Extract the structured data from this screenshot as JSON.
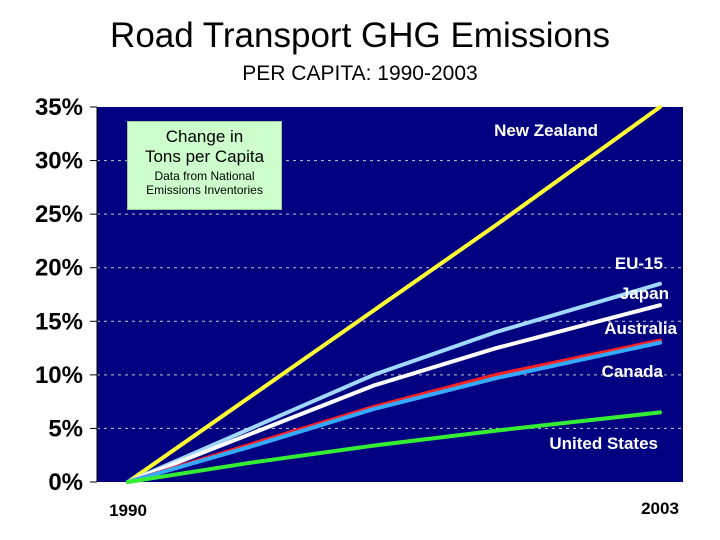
{
  "title": "Road Transport GHG Emissions",
  "subtitle": "PER CAPITA: 1990-2003",
  "note": {
    "line1": "Change in",
    "line2": "Tons per Capita",
    "line3": "Data from National",
    "line4": "Emissions Inventories"
  },
  "colors": {
    "plot_bg": "#000080",
    "grid": "#c8c8c8",
    "new_zealand": "#ffff33",
    "eu15": "#a0d8ff",
    "japan": "#ffffff",
    "australia": "#ff2020",
    "canada": "#33aaff",
    "united_states": "#33ee33"
  },
  "chart_data": {
    "type": "line",
    "title": "Road Transport GHG Emissions",
    "subtitle": "PER CAPITA: 1990-2003",
    "xlabel": "",
    "ylabel": "",
    "x_tick_labels": [
      "1990",
      "2003"
    ],
    "x": [
      1990,
      1993,
      1996,
      1999,
      2003
    ],
    "ylim": [
      0,
      35
    ],
    "y_ticks": [
      0,
      5,
      10,
      15,
      20,
      25,
      30,
      35
    ],
    "y_tick_labels": [
      "0%",
      "5%",
      "10%",
      "15%",
      "20%",
      "25%",
      "30%",
      "35%"
    ],
    "grid": true,
    "series": [
      {
        "name": "New Zealand",
        "key": "new_zealand",
        "values": [
          0,
          8,
          16,
          24,
          35
        ]
      },
      {
        "name": "EU-15",
        "key": "eu15",
        "values": [
          0,
          5,
          10,
          14,
          18.5
        ]
      },
      {
        "name": "Japan",
        "key": "japan",
        "values": [
          0,
          4.5,
          9,
          12.5,
          16.5
        ]
      },
      {
        "name": "Australia",
        "key": "australia",
        "values": [
          0,
          3.5,
          7,
          10,
          13.2
        ]
      },
      {
        "name": "Canada",
        "key": "canada",
        "values": [
          0,
          3.3,
          6.8,
          9.7,
          13
        ]
      },
      {
        "name": "United States",
        "key": "united_states",
        "values": [
          0,
          1.8,
          3.4,
          4.8,
          6.5
        ]
      }
    ]
  }
}
